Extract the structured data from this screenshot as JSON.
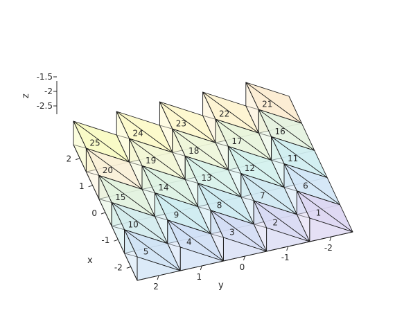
{
  "chart_data": {
    "type": "3d-mesh",
    "title": "",
    "x_label": "x",
    "y_label": "y",
    "z_label": "z",
    "x_ticks": [
      "2",
      "1",
      "0",
      "-1",
      "-2"
    ],
    "y_ticks": [
      "2",
      "1",
      "0",
      "-1",
      "-2"
    ],
    "z_ticks": [
      "-1.5",
      "-2",
      "-2.5"
    ],
    "grid": false,
    "elements": [
      {
        "id": "1",
        "x": -2,
        "y": -2,
        "color": "#dcd6f2"
      },
      {
        "id": "2",
        "x": -2,
        "y": -1,
        "color": "#d8d9f3"
      },
      {
        "id": "3",
        "x": -2,
        "y": 0,
        "color": "#d4dcf4"
      },
      {
        "id": "4",
        "x": -2,
        "y": 1,
        "color": "#d0e0f5"
      },
      {
        "id": "5",
        "x": -2,
        "y": 2,
        "color": "#cfe3f5"
      },
      {
        "id": "6",
        "x": -1,
        "y": -2,
        "color": "#d2e6f6"
      },
      {
        "id": "7",
        "x": -1,
        "y": -1,
        "color": "#cfe8f3"
      },
      {
        "id": "8",
        "x": -1,
        "y": 0,
        "color": "#cdeaf2"
      },
      {
        "id": "9",
        "x": -1,
        "y": 1,
        "color": "#cdebf1"
      },
      {
        "id": "10",
        "x": -1,
        "y": 2,
        "color": "#d2ecee"
      },
      {
        "id": "11",
        "x": 0,
        "y": -2,
        "color": "#cfeef1"
      },
      {
        "id": "12",
        "x": 0,
        "y": -1,
        "color": "#d3f1ee"
      },
      {
        "id": "13",
        "x": 0,
        "y": 0,
        "color": "#d8f2ea"
      },
      {
        "id": "14",
        "x": 0,
        "y": 1,
        "color": "#dcf2e4"
      },
      {
        "id": "15",
        "x": 0,
        "y": 2,
        "color": "#e2f2de"
      },
      {
        "id": "16",
        "x": 1,
        "y": -2,
        "color": "#e4f2df"
      },
      {
        "id": "17",
        "x": 1,
        "y": -1,
        "color": "#e8f4dc"
      },
      {
        "id": "18",
        "x": 1,
        "y": 0,
        "color": "#eef6da"
      },
      {
        "id": "19",
        "x": 1,
        "y": 1,
        "color": "#f2f6d6"
      },
      {
        "id": "20",
        "x": 1,
        "y": 2,
        "color": "#faf0d8"
      },
      {
        "id": "21",
        "x": 2,
        "y": -2,
        "color": "#fcecd0"
      },
      {
        "id": "22",
        "x": 2,
        "y": -1,
        "color": "#fdf3cf"
      },
      {
        "id": "23",
        "x": 2,
        "y": 0,
        "color": "#fdf7cc"
      },
      {
        "id": "24",
        "x": 2,
        "y": 1,
        "color": "#fcfac8"
      },
      {
        "id": "25",
        "x": 2,
        "y": 2,
        "color": "#f8fbc2"
      }
    ]
  }
}
